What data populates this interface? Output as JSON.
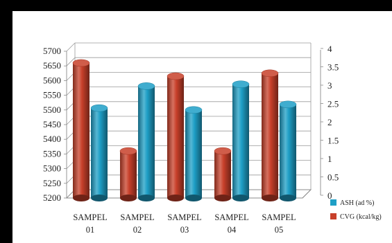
{
  "chart_data": {
    "type": "bar",
    "categories": [
      {
        "line1": "SAMPEL",
        "line2": "01"
      },
      {
        "line1": "SAMPEL",
        "line2": "02"
      },
      {
        "line1": "SAMPEL",
        "line2": "03"
      },
      {
        "line1": "SAMPEL",
        "line2": "04"
      },
      {
        "line1": "SAMPEL",
        "line2": "05"
      }
    ],
    "series": [
      {
        "name": "CVG (kcal/kg)",
        "axis": "left",
        "color": "#c8402a",
        "values": [
          5660,
          5360,
          5615,
          5360,
          5625
        ]
      },
      {
        "name": "ASH (ad %)",
        "axis": "right",
        "color": "#1e9fc6",
        "values": [
          2.45,
          3.05,
          2.4,
          3.1,
          2.55
        ]
      }
    ],
    "y_left": {
      "min": 5200,
      "max": 5700,
      "step": 50,
      "ticks": [
        "5200",
        "5250",
        "5300",
        "5350",
        "5400",
        "5450",
        "5500",
        "5550",
        "5600",
        "5650",
        "5700"
      ]
    },
    "y_right": {
      "min": 0,
      "max": 4,
      "step": 0.5,
      "ticks": [
        "0",
        "0.5",
        "1",
        "1.5",
        "2",
        "2.5",
        "3",
        "3.5",
        "4"
      ]
    },
    "legend": {
      "placement": "bottom-right",
      "items": [
        {
          "label": "ASH (ad %)",
          "color": "#1e9fc6"
        },
        {
          "label": "CVG (kcal/kg)",
          "color": "#c8402a"
        }
      ]
    },
    "grid": true,
    "style": "3d-cylinder"
  }
}
